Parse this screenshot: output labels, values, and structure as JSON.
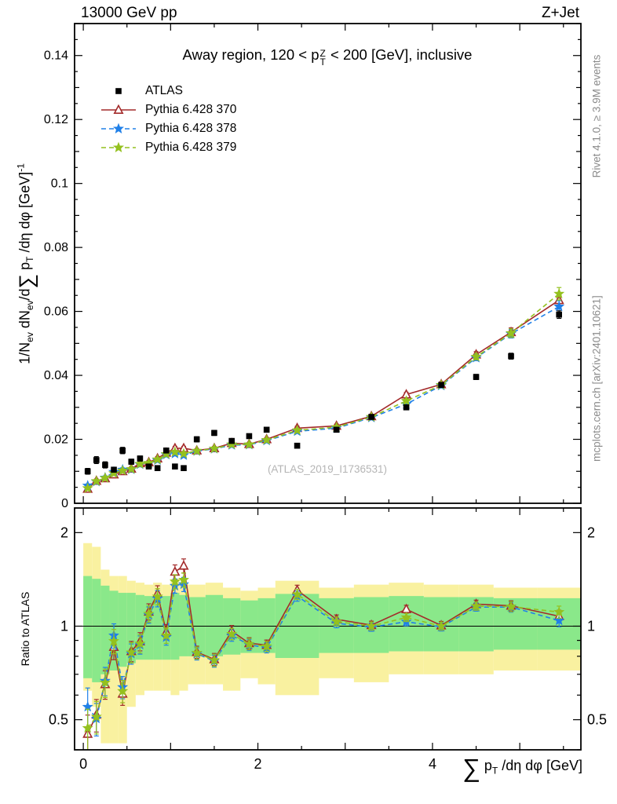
{
  "header": {
    "left": "13000 GeV pp",
    "right": "Z+Jet"
  },
  "plot_title": {
    "pre": "Away region, 120 < p",
    "sup": "Z",
    "sub": "T",
    "post": " < 200 [GeV], inclusive"
  },
  "watermark": "(ATLAS_2019_I1736531)",
  "side_notes": {
    "top_right": "Rivet 4.1.0, ≥ 3.9M events",
    "bottom_right": "mcplots.cern.ch [arXiv:2401.10621]"
  },
  "axes": {
    "ylabel": {
      "p1": "1/N",
      "s1": "ev",
      "p2": " dN",
      "s2": "ev",
      "p3": "/d",
      "sum": "∑",
      "p4": " p",
      "s3": "T",
      "p5": " /dη dφ  [GeV]",
      "sup": "-1"
    },
    "ratio_ylabel": "Ratio to ATLAS",
    "xlabel": {
      "sum": "∑",
      "p": " p",
      "sub": "T",
      "rest": " /dη dφ [GeV]"
    }
  },
  "legend": {
    "entries": [
      {
        "label": "ATLAS",
        "marker": "square",
        "line": "none",
        "color": "#000000"
      },
      {
        "label": "Pythia 6.428 370",
        "marker": "triangle",
        "line": "solid",
        "color": "#a32a2a"
      },
      {
        "label": "Pythia 6.428 378",
        "marker": "star",
        "line": "dash",
        "color": "#2080e8"
      },
      {
        "label": "Pythia 6.428 379",
        "marker": "star",
        "line": "dash",
        "color": "#94c11f"
      }
    ]
  },
  "chart_data": {
    "type": "line",
    "title": "Away region, 120 < pT(Z) < 200 [GeV], inclusive",
    "xlabel": "Sum pT /deta dphi [GeV]",
    "ylabel": "1/Nev dNev/d Sum pT /deta dphi [GeV]^-1",
    "ratio_ylabel": "Ratio to ATLAS",
    "xlim": [
      -0.1,
      5.7
    ],
    "ylim_main": [
      0,
      0.15
    ],
    "ylim_ratio_log": [
      0.4,
      2.4
    ],
    "x": [
      0.05,
      0.15,
      0.25,
      0.35,
      0.45,
      0.55,
      0.65,
      0.75,
      0.85,
      0.95,
      1.05,
      1.15,
      1.3,
      1.5,
      1.7,
      1.9,
      2.1,
      2.45,
      2.9,
      3.3,
      3.7,
      4.1,
      4.5,
      4.9,
      5.45
    ],
    "series": [
      {
        "name": "ATLAS",
        "color": "#000000",
        "marker": "square",
        "line": "none",
        "values": [
          0.01,
          0.0135,
          0.012,
          0.0105,
          0.0165,
          0.013,
          0.014,
          0.0115,
          0.011,
          0.0165,
          0.0115,
          0.011,
          0.02,
          0.022,
          0.0195,
          0.021,
          0.023,
          0.018,
          0.023,
          0.027,
          0.03,
          0.037,
          0.0395,
          0.046,
          0.059
        ]
      },
      {
        "name": "Pythia 6.428 370",
        "color": "#a32a2a",
        "marker": "triangle",
        "line": "solid",
        "values": [
          0.0045,
          0.007,
          0.0078,
          0.009,
          0.01,
          0.0108,
          0.0125,
          0.0128,
          0.014,
          0.0158,
          0.0172,
          0.0172,
          0.0165,
          0.0172,
          0.0188,
          0.0185,
          0.02,
          0.0235,
          0.0242,
          0.0272,
          0.034,
          0.0372,
          0.0465,
          0.0535,
          0.0635
        ]
      },
      {
        "name": "Pythia 6.428 378",
        "color": "#2080e8",
        "marker": "star",
        "line": "dash",
        "values": [
          0.0055,
          0.0068,
          0.008,
          0.0098,
          0.0105,
          0.0106,
          0.0122,
          0.0125,
          0.0135,
          0.0152,
          0.0155,
          0.015,
          0.0163,
          0.017,
          0.0182,
          0.0183,
          0.0196,
          0.0225,
          0.0235,
          0.0268,
          0.031,
          0.0368,
          0.0455,
          0.053,
          0.0615
        ]
      },
      {
        "name": "Pythia 6.428 379",
        "color": "#94c11f",
        "marker": "star",
        "line": "dash",
        "values": [
          0.0047,
          0.0069,
          0.0079,
          0.0094,
          0.0102,
          0.0107,
          0.0123,
          0.0126,
          0.0137,
          0.0154,
          0.016,
          0.0155,
          0.0164,
          0.0171,
          0.0184,
          0.0184,
          0.0198,
          0.0228,
          0.0238,
          0.027,
          0.032,
          0.037,
          0.0458,
          0.0532,
          0.0655
        ]
      }
    ],
    "atlas_rel_err": [
      0.09,
      0.08,
      0.08,
      0.07,
      0.06,
      0.06,
      0.055,
      0.05,
      0.05,
      0.045,
      0.045,
      0.045,
      0.04,
      0.035,
      0.035,
      0.03,
      0.03,
      0.028,
      0.025,
      0.022,
      0.02,
      0.02,
      0.02,
      0.02,
      0.02
    ],
    "model_rel_err": [
      0.1,
      0.08,
      0.07,
      0.06,
      0.055,
      0.05,
      0.045,
      0.04,
      0.04,
      0.038,
      0.035,
      0.035,
      0.03,
      0.03,
      0.028,
      0.028,
      0.025,
      0.025,
      0.022,
      0.02,
      0.02,
      0.02,
      0.02,
      0.025,
      0.03
    ],
    "ratio_bands": {
      "edges": [
        0,
        0.1,
        0.2,
        0.3,
        0.4,
        0.5,
        0.6,
        0.7,
        0.8,
        0.9,
        1.0,
        1.1,
        1.2,
        1.4,
        1.6,
        1.8,
        2.0,
        2.2,
        2.7,
        3.1,
        3.5,
        3.9,
        4.3,
        4.7,
        5.2,
        5.7
      ],
      "yellow_lo": [
        0.62,
        0.55,
        0.42,
        0.42,
        0.42,
        0.55,
        0.6,
        0.62,
        0.62,
        0.62,
        0.6,
        0.62,
        0.65,
        0.65,
        0.62,
        0.68,
        0.65,
        0.6,
        0.68,
        0.66,
        0.7,
        0.7,
        0.7,
        0.72,
        0.72
      ],
      "yellow_hi": [
        1.85,
        1.8,
        1.52,
        1.45,
        1.45,
        1.4,
        1.38,
        1.36,
        1.38,
        1.36,
        1.42,
        1.38,
        1.36,
        1.38,
        1.33,
        1.3,
        1.33,
        1.4,
        1.33,
        1.36,
        1.38,
        1.36,
        1.36,
        1.33,
        1.33
      ],
      "green_lo": [
        0.68,
        0.66,
        0.7,
        0.72,
        0.74,
        0.76,
        0.78,
        0.78,
        0.78,
        0.78,
        0.78,
        0.8,
        0.8,
        0.8,
        0.81,
        0.82,
        0.82,
        0.79,
        0.82,
        0.82,
        0.83,
        0.83,
        0.83,
        0.84,
        0.84
      ],
      "green_hi": [
        1.45,
        1.42,
        1.35,
        1.3,
        1.28,
        1.28,
        1.26,
        1.25,
        1.26,
        1.25,
        1.28,
        1.26,
        1.24,
        1.26,
        1.23,
        1.21,
        1.23,
        1.27,
        1.23,
        1.24,
        1.25,
        1.24,
        1.24,
        1.23,
        1.23
      ]
    },
    "colors": {
      "band_yellow": "#f9f1a0",
      "band_green": "#8ae88a",
      "reference_line": "#000000"
    },
    "yticks_main": {
      "values": [
        0,
        0.02,
        0.04,
        0.06,
        0.08,
        0.1,
        0.12,
        0.14
      ],
      "labels": [
        "0",
        "0.02",
        "0.04",
        "0.06",
        "0.08",
        "0.1",
        "0.12",
        "0.14"
      ]
    },
    "ratio_ticks": {
      "values": [
        0.5,
        1,
        2
      ],
      "labels": [
        "0.5",
        "1",
        "2"
      ],
      "minor": [
        0.4,
        0.6,
        0.7,
        0.8,
        0.9
      ]
    },
    "xticks": {
      "values": [
        0,
        2,
        4
      ],
      "labels": [
        "0",
        "2",
        "4"
      ]
    },
    "legend_position": "top-left",
    "grid": false,
    "ratio_scale": "log"
  }
}
